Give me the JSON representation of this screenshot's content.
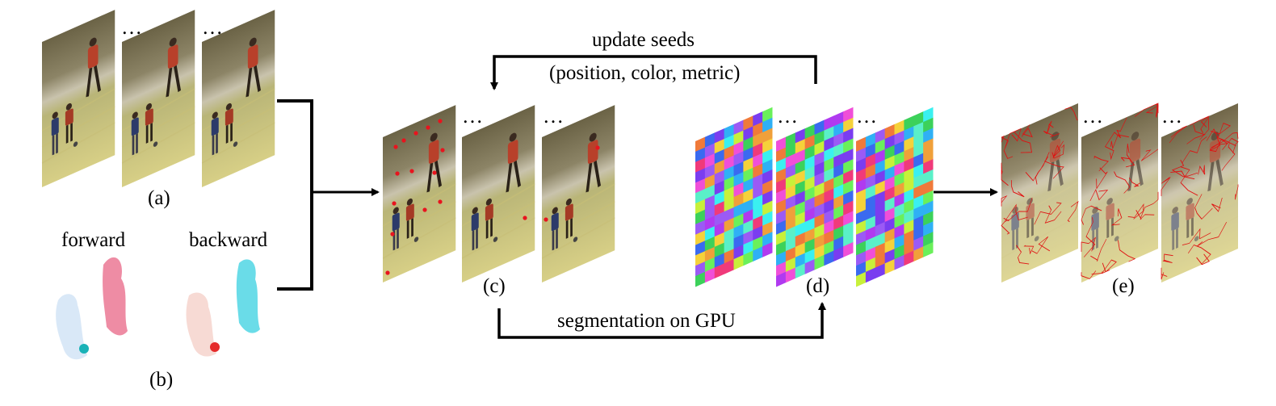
{
  "labels": {
    "a": "(a)",
    "b": "(b)",
    "c": "(c)",
    "d": "(d)",
    "e": "(e)",
    "forward": "forward",
    "backward": "backward",
    "update_seeds": "update seeds",
    "update_detail": "(position, color, metric)",
    "segmentation": "segmentation on GPU",
    "ellipsis": "…"
  },
  "colors": {
    "arrow": "#000000",
    "seed_dot": "#e8141e",
    "boundary": "#e01010",
    "field": "#c9c47a",
    "wall": "#8a7e5c",
    "forward_flow": "#e86a86",
    "backward_flow": "#5ad8e6"
  },
  "icons": {
    "video_frame": "frame-icon",
    "player": "soccer-player-icon",
    "ball": "ball-icon"
  }
}
